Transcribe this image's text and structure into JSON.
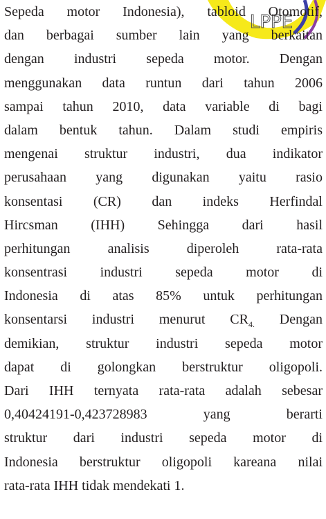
{
  "logo": {
    "text": "LPPE"
  },
  "paragraph": {
    "lines": [
      "Sepeda motor Indonesia), tabloid Otomotif,",
      "dan berbagai sumber lain yang berkaitan",
      "dengan industri sepeda motor. Dengan",
      "menggunakan data runtun dari tahun 2006",
      "sampai tahun 2010, data variable di bagi",
      "dalam bentuk tahun. Dalam studi empiris",
      "mengenai struktur industri, dua indikator",
      "perusahaan yang digunakan yaitu rasio",
      "konsentasi (CR) dan indeks Herfindal",
      "Hircsman (IHH) Sehingga dari hasil",
      "perhitungan analisis diperoleh rata-rata",
      "konsentrasi industri sepeda motor di",
      "Indonesia di atas 85% untuk perhitungan",
      {
        "before": "konsentarsi industri menurut CR",
        "subscript": "4.",
        "after": "Dengan"
      },
      "demikian, struktur industri sepeda motor",
      "dapat di golongkan berstruktur oligopoli.",
      "Dari IHH ternyata rata-rata adalah sebesar",
      "0,40424191-0,423728983 yang berarti",
      "struktur dari industri sepeda motor di",
      "Indonesia berstruktur oligopoli kareana nilai",
      "rata-rata IHH tidak mendekati 1."
    ]
  }
}
